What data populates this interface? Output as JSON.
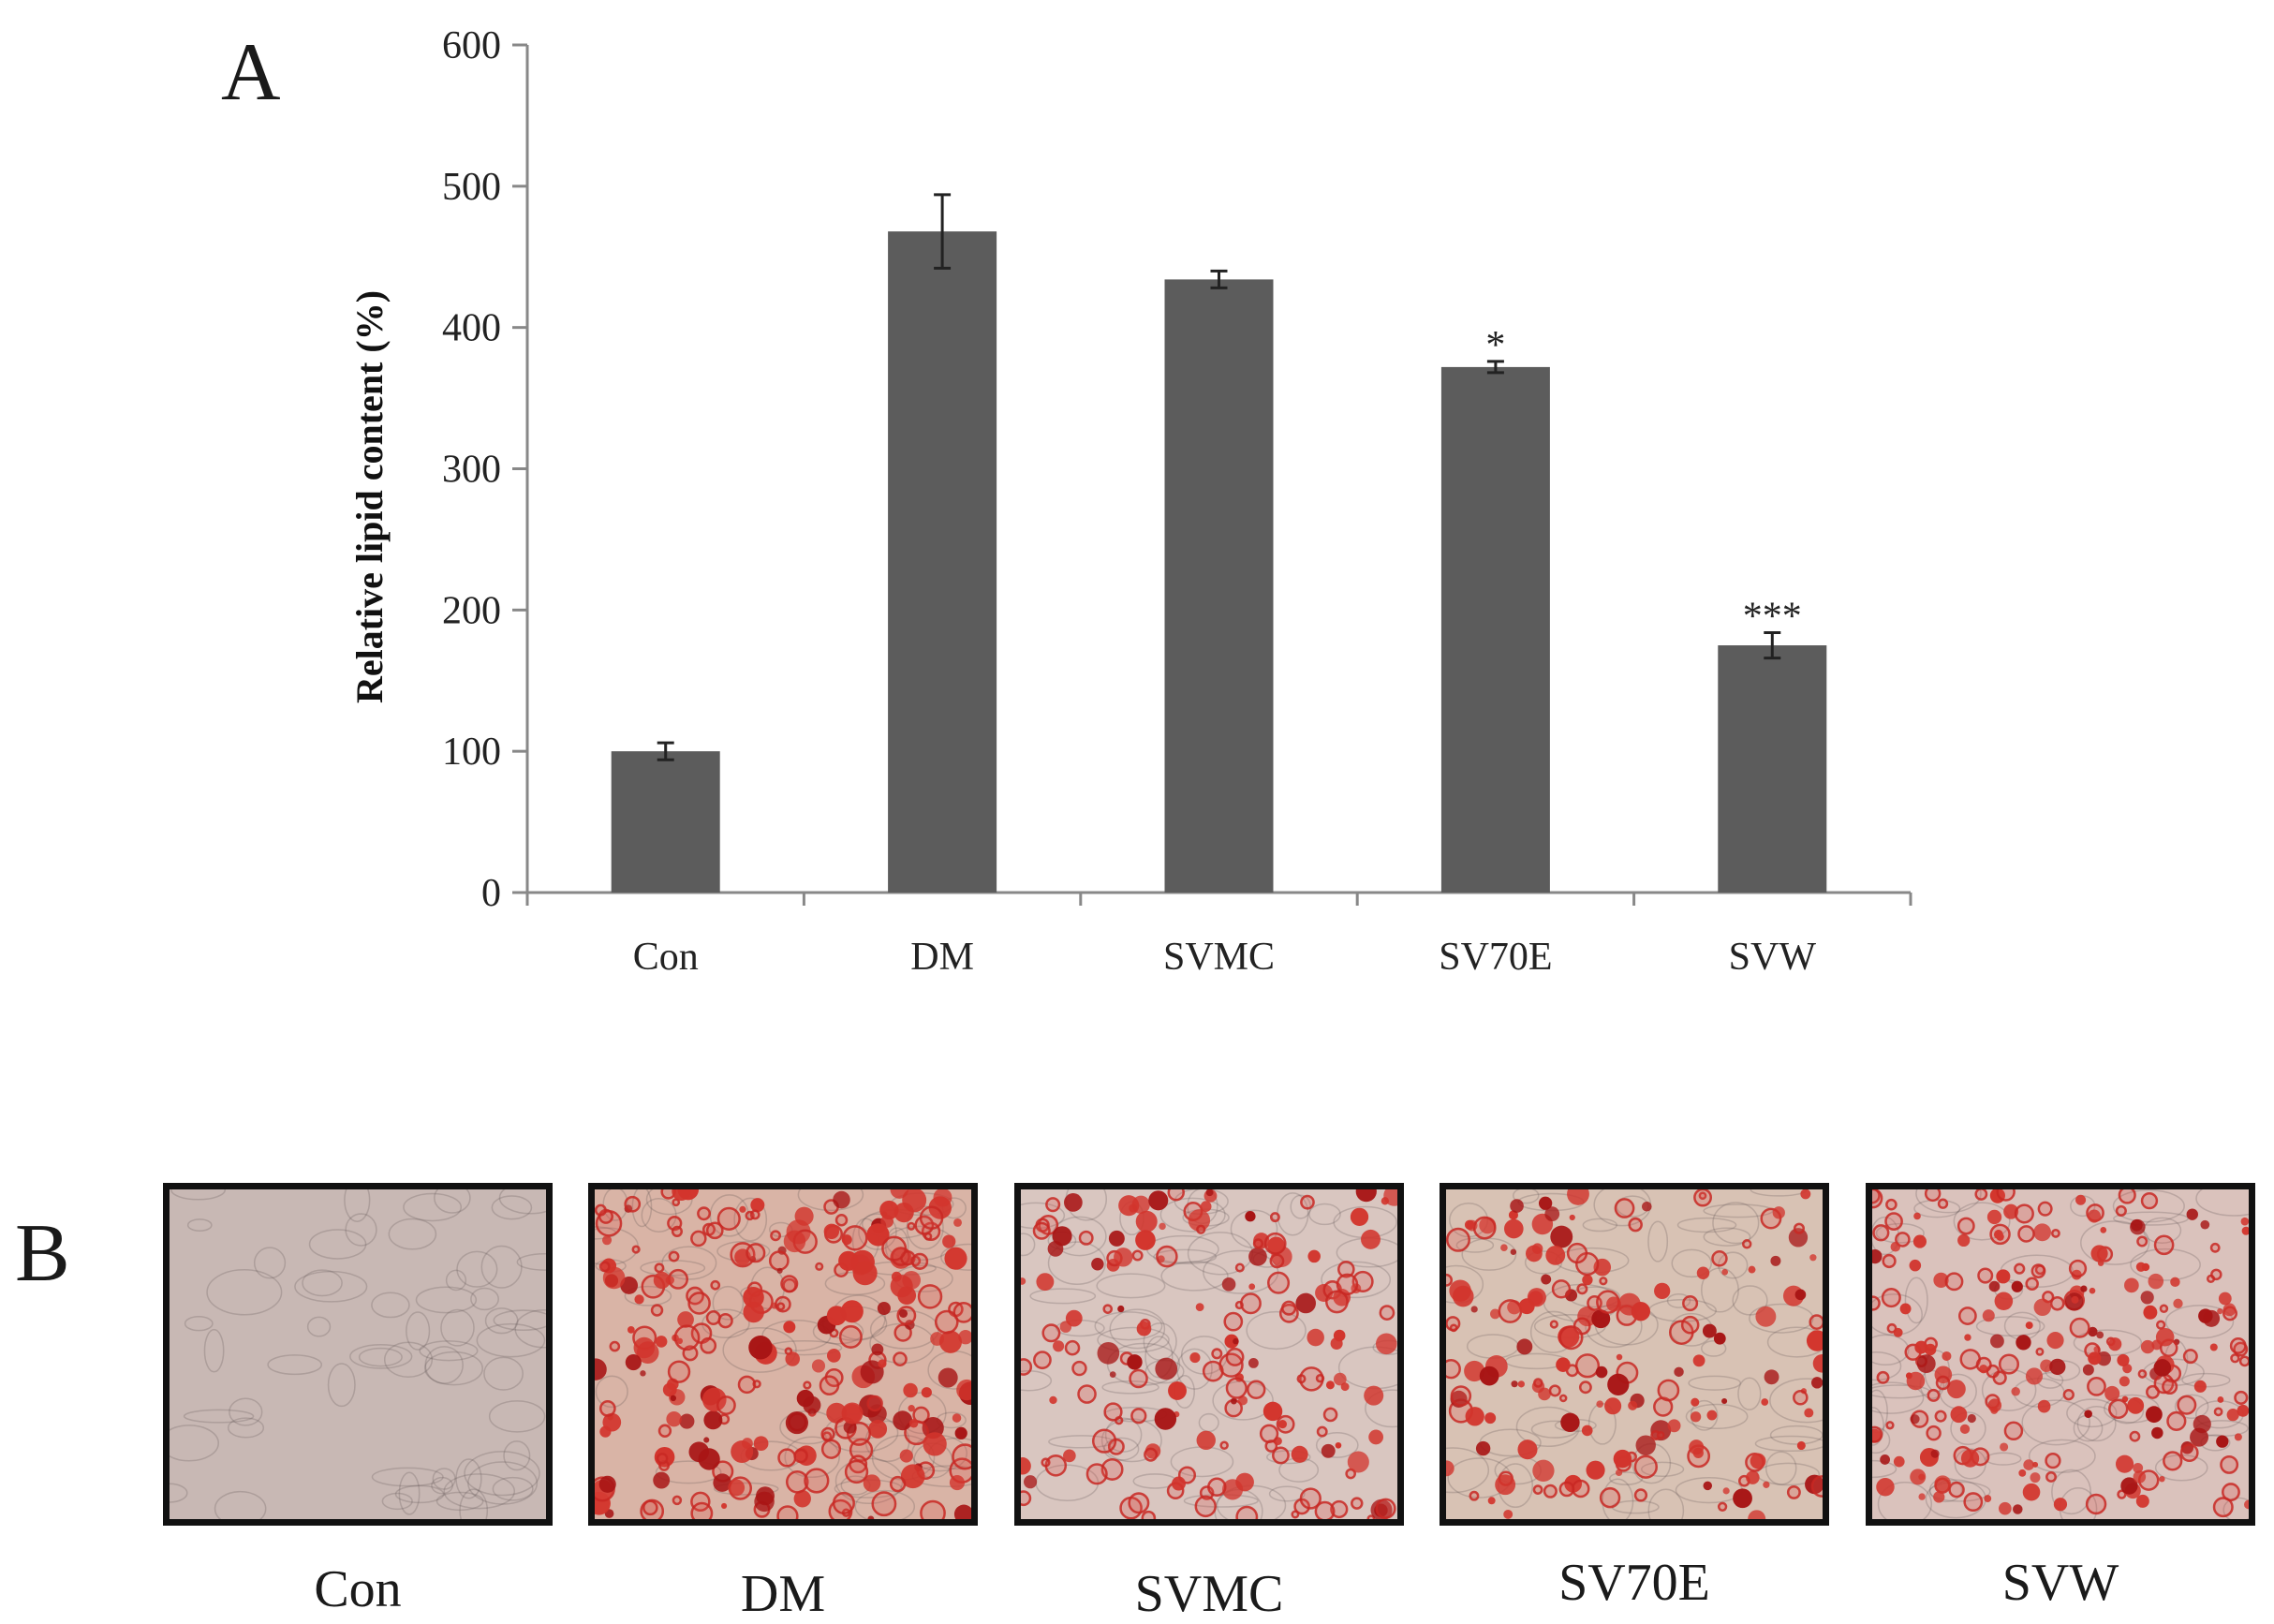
{
  "panels": {
    "a_label": "A",
    "b_label": "B"
  },
  "chart_data": {
    "type": "bar",
    "categories": [
      "Con",
      "DM",
      "SVMC",
      "SV70E",
      "SVW"
    ],
    "values": [
      100,
      468,
      434,
      372,
      175
    ],
    "errors": [
      6,
      26,
      6,
      4,
      9
    ],
    "annotations": [
      "",
      "",
      "",
      "*",
      "***"
    ],
    "ylabel": "Relative lipid content (%)",
    "xlabel": "",
    "ylim": [
      0,
      600
    ],
    "yticks": [
      0,
      100,
      200,
      300,
      400,
      500,
      600
    ],
    "bar_color": "#5c5c5c",
    "grid": false,
    "legend": false
  },
  "micrographs": [
    {
      "label": "Con",
      "tint": "#c8b8b4",
      "stain": "none"
    },
    {
      "label": "DM",
      "tint": "#d9b4a6",
      "stain": "dense"
    },
    {
      "label": "SVMC",
      "tint": "#d9c6c0",
      "stain": "medium"
    },
    {
      "label": "SV70E",
      "tint": "#d8c2b4",
      "stain": "medium"
    },
    {
      "label": "SVW",
      "tint": "#dac2bc",
      "stain": "dense-small"
    }
  ]
}
